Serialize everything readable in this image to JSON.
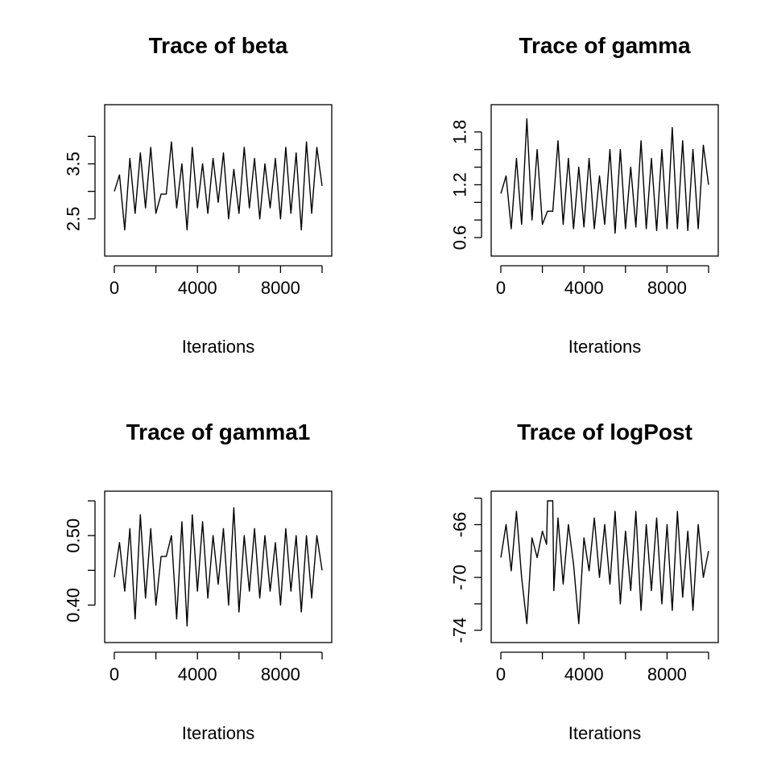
{
  "chart_data": [
    {
      "type": "line",
      "title": "Trace of beta",
      "xlabel": "Iterations",
      "ylabel": "",
      "xlim": [
        0,
        10000
      ],
      "ylim": [
        2.0,
        4.4
      ],
      "xticks": [
        0,
        4000,
        8000
      ],
      "xtick_labels": [
        "0",
        "4000",
        "8000"
      ],
      "yticks": [
        2.5,
        3.0,
        3.5,
        4.0
      ],
      "ytick_labels": [
        "2.5",
        "",
        "3.5",
        ""
      ],
      "series": [
        {
          "x": [
            0,
            250,
            500,
            750,
            1000,
            1250,
            1500,
            1750,
            2000,
            2250,
            2500,
            2750,
            3000,
            3250,
            3500,
            3750,
            4000,
            4250,
            4500,
            4750,
            5000,
            5250,
            5500,
            5750,
            6000,
            6250,
            6500,
            6750,
            7000,
            7250,
            7500,
            7750,
            8000,
            8250,
            8500,
            8750,
            9000,
            9250,
            9500,
            9750,
            10000
          ],
          "y": [
            3.0,
            3.3,
            2.3,
            3.6,
            2.6,
            3.7,
            2.7,
            3.8,
            2.6,
            2.95,
            2.95,
            3.9,
            2.7,
            3.5,
            2.3,
            3.8,
            2.7,
            3.5,
            2.6,
            3.6,
            2.8,
            3.7,
            2.5,
            3.4,
            2.6,
            3.8,
            2.7,
            3.6,
            2.5,
            3.5,
            2.7,
            3.6,
            2.5,
            3.8,
            2.6,
            3.7,
            2.3,
            3.9,
            2.6,
            3.8,
            3.1
          ]
        }
      ]
    },
    {
      "type": "line",
      "title": "Trace of gamma",
      "xlabel": "Iterations",
      "ylabel": "",
      "xlim": [
        0,
        10000
      ],
      "ylim": [
        0.5,
        2.0
      ],
      "xticks": [
        0,
        4000,
        8000
      ],
      "xtick_labels": [
        "0",
        "4000",
        "8000"
      ],
      "yticks": [
        0.6,
        0.8,
        1.0,
        1.2,
        1.4,
        1.6,
        1.8
      ],
      "ytick_labels": [
        "0.6",
        "",
        "",
        "1.2",
        "",
        "",
        "1.8"
      ],
      "series": [
        {
          "x": [
            0,
            250,
            500,
            750,
            1000,
            1250,
            1500,
            1750,
            2000,
            2250,
            2500,
            2750,
            3000,
            3250,
            3500,
            3750,
            4000,
            4250,
            4500,
            4750,
            5000,
            5250,
            5500,
            5750,
            6000,
            6250,
            6500,
            6750,
            7000,
            7250,
            7500,
            7750,
            8000,
            8250,
            8500,
            8750,
            9000,
            9250,
            9500,
            9750,
            10000
          ],
          "y": [
            1.1,
            1.3,
            0.7,
            1.5,
            0.75,
            1.95,
            0.8,
            1.6,
            0.75,
            0.9,
            0.9,
            1.7,
            0.75,
            1.5,
            0.7,
            1.4,
            0.72,
            1.5,
            0.7,
            1.3,
            0.75,
            1.6,
            0.65,
            1.6,
            0.7,
            1.4,
            0.72,
            1.7,
            0.7,
            1.5,
            0.68,
            1.6,
            0.7,
            1.85,
            0.7,
            1.7,
            0.68,
            1.6,
            0.7,
            1.65,
            1.2
          ]
        }
      ]
    },
    {
      "type": "line",
      "title": "Trace of gamma1",
      "xlabel": "Iterations",
      "ylabel": "",
      "xlim": [
        0,
        10000
      ],
      "ylim": [
        0.36,
        0.55
      ],
      "xticks": [
        0,
        4000,
        8000
      ],
      "xtick_labels": [
        "0",
        "4000",
        "8000"
      ],
      "yticks": [
        0.4,
        0.45,
        0.5,
        0.55
      ],
      "ytick_labels": [
        "0.40",
        "",
        "0.50",
        ""
      ],
      "series": [
        {
          "x": [
            0,
            250,
            500,
            750,
            1000,
            1250,
            1500,
            1750,
            2000,
            2250,
            2500,
            2750,
            3000,
            3250,
            3500,
            3750,
            4000,
            4250,
            4500,
            4750,
            5000,
            5250,
            5500,
            5750,
            6000,
            6250,
            6500,
            6750,
            7000,
            7250,
            7500,
            7750,
            8000,
            8250,
            8500,
            8750,
            9000,
            9250,
            9500,
            9750,
            10000
          ],
          "y": [
            0.44,
            0.49,
            0.42,
            0.51,
            0.38,
            0.53,
            0.41,
            0.51,
            0.4,
            0.47,
            0.47,
            0.5,
            0.38,
            0.52,
            0.37,
            0.53,
            0.42,
            0.52,
            0.41,
            0.5,
            0.43,
            0.51,
            0.4,
            0.54,
            0.39,
            0.5,
            0.42,
            0.51,
            0.41,
            0.5,
            0.42,
            0.49,
            0.4,
            0.51,
            0.42,
            0.5,
            0.39,
            0.5,
            0.41,
            0.5,
            0.45
          ]
        }
      ]
    },
    {
      "type": "line",
      "title": "Trace of logPost",
      "xlabel": "Iterations",
      "ylabel": "",
      "xlim": [
        0,
        10000
      ],
      "ylim": [
        -74.2,
        -64.2
      ],
      "xticks": [
        0,
        4000,
        8000
      ],
      "xtick_labels": [
        "0",
        "4000",
        "8000"
      ],
      "yticks": [
        -74,
        -72,
        -70,
        -68,
        -66,
        -64
      ],
      "ytick_labels": [
        "-74",
        "",
        "-70",
        "",
        "-66",
        ""
      ],
      "series": [
        {
          "x": [
            0,
            250,
            500,
            750,
            1000,
            1250,
            1500,
            1750,
            2000,
            2200,
            2250,
            2500,
            2550,
            2750,
            3000,
            3250,
            3500,
            3750,
            4000,
            4250,
            4500,
            4750,
            5000,
            5250,
            5500,
            5750,
            6000,
            6250,
            6500,
            6750,
            7000,
            7250,
            7500,
            7750,
            8000,
            8250,
            8500,
            8750,
            9000,
            9250,
            9500,
            9750,
            10000
          ],
          "y": [
            -68.5,
            -66.0,
            -69.5,
            -65.0,
            -70.0,
            -73.5,
            -67.0,
            -68.5,
            -66.5,
            -67.5,
            -64.2,
            -64.2,
            -71.0,
            -65.5,
            -70.5,
            -66.0,
            -69.0,
            -73.5,
            -67.0,
            -69.5,
            -65.5,
            -70.0,
            -66.0,
            -70.5,
            -65.0,
            -72.0,
            -66.5,
            -71.0,
            -65.0,
            -72.5,
            -66.0,
            -71.0,
            -65.5,
            -72.0,
            -66.0,
            -72.5,
            -65.0,
            -71.5,
            -66.5,
            -72.5,
            -66.0,
            -70.0,
            -68.0
          ]
        }
      ]
    }
  ]
}
